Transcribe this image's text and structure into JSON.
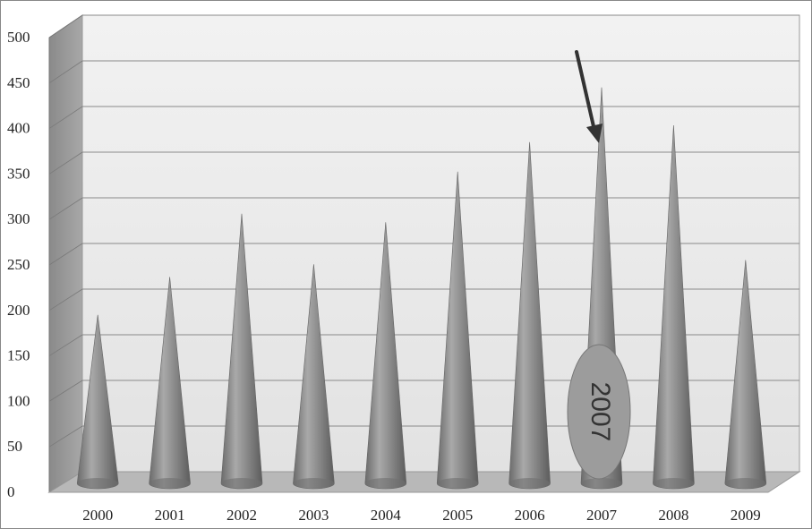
{
  "chart_data": {
    "type": "bar",
    "bar_shape": "cone",
    "categories": [
      "2000",
      "2001",
      "2002",
      "2003",
      "2004",
      "2005",
      "2006",
      "2007",
      "2008",
      "2009"
    ],
    "values": [
      200,
      245,
      320,
      260,
      310,
      370,
      405,
      470,
      425,
      265
    ],
    "title": "",
    "xlabel": "",
    "ylabel": "",
    "ylim": [
      0,
      500
    ],
    "yticks": [
      0,
      50,
      100,
      150,
      200,
      250,
      300,
      350,
      400,
      450,
      500
    ],
    "grid": true,
    "legend": "none",
    "annotation": {
      "category": "2007",
      "label": "2007",
      "arrow": true
    }
  },
  "colors": {
    "cone": "#8c8c8c",
    "cone_highlight": "#b4b4b4",
    "cone_shadow": "#5e5e5e",
    "wall": "#ececec",
    "side_wall": "#9a9a9a",
    "floor": "#b8b8b8",
    "grid": "#8a8a8a",
    "annotation_fill": "#9c9c9c",
    "arrow": "#333333"
  }
}
